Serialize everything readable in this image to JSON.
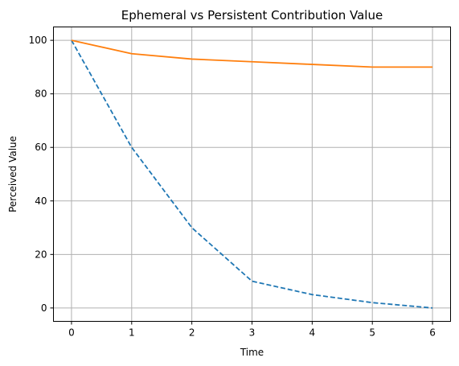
{
  "chart_data": {
    "type": "line",
    "title": "Ephemeral vs Persistent Contribution Value",
    "xlabel": "Time",
    "ylabel": "Perceived Value",
    "x": [
      0,
      1,
      2,
      3,
      4,
      5,
      6
    ],
    "xlim": [
      -0.3,
      6.3
    ],
    "ylim": [
      -5,
      105
    ],
    "xticks": [
      "0",
      "1",
      "2",
      "3",
      "4",
      "5",
      "6"
    ],
    "yticks": [
      "0",
      "20",
      "40",
      "60",
      "80",
      "100"
    ],
    "grid": true,
    "legend": "none",
    "series": [
      {
        "values": [
          100,
          60,
          30,
          10,
          5,
          2,
          0
        ],
        "color": "#1f77b4",
        "line_style": "dashed"
      },
      {
        "values": [
          100,
          95,
          93,
          92,
          91,
          90,
          90
        ],
        "color": "#ff7f0e",
        "line_style": "solid"
      }
    ]
  }
}
